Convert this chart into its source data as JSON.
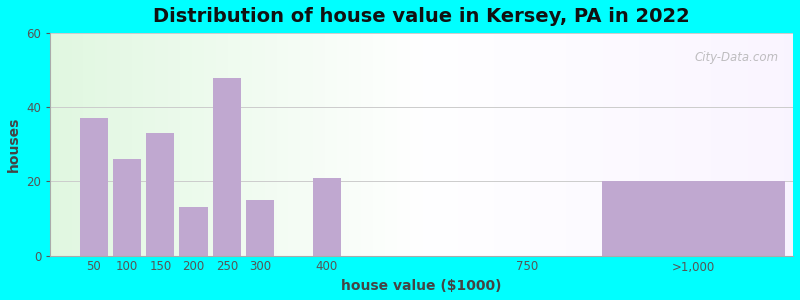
{
  "title": "Distribution of house value in Kersey, PA in 2022",
  "xlabel": "house value ($1000)",
  "ylabel": "houses",
  "bar_color": "#C0A8D0",
  "background_outer": "#00FFFF",
  "ylim": [
    0,
    60
  ],
  "yticks": [
    0,
    20,
    40,
    60
  ],
  "tick_labels": [
    "50",
    "100",
    "150",
    "200",
    "250",
    "300",
    "400",
    "750",
    ">1,000"
  ],
  "bar_positions": [
    1,
    2,
    3,
    4,
    5,
    6,
    8,
    14,
    19
  ],
  "bar_widths": [
    1,
    1,
    1,
    1,
    1,
    1,
    1,
    1,
    5
  ],
  "values": [
    37,
    26,
    33,
    13,
    48,
    15,
    21,
    0,
    20
  ],
  "xlim": [
    -0.3,
    22
  ],
  "title_fontsize": 14,
  "axis_label_fontsize": 10,
  "tick_fontsize": 8.5,
  "watermark_text": "City-Data.com"
}
